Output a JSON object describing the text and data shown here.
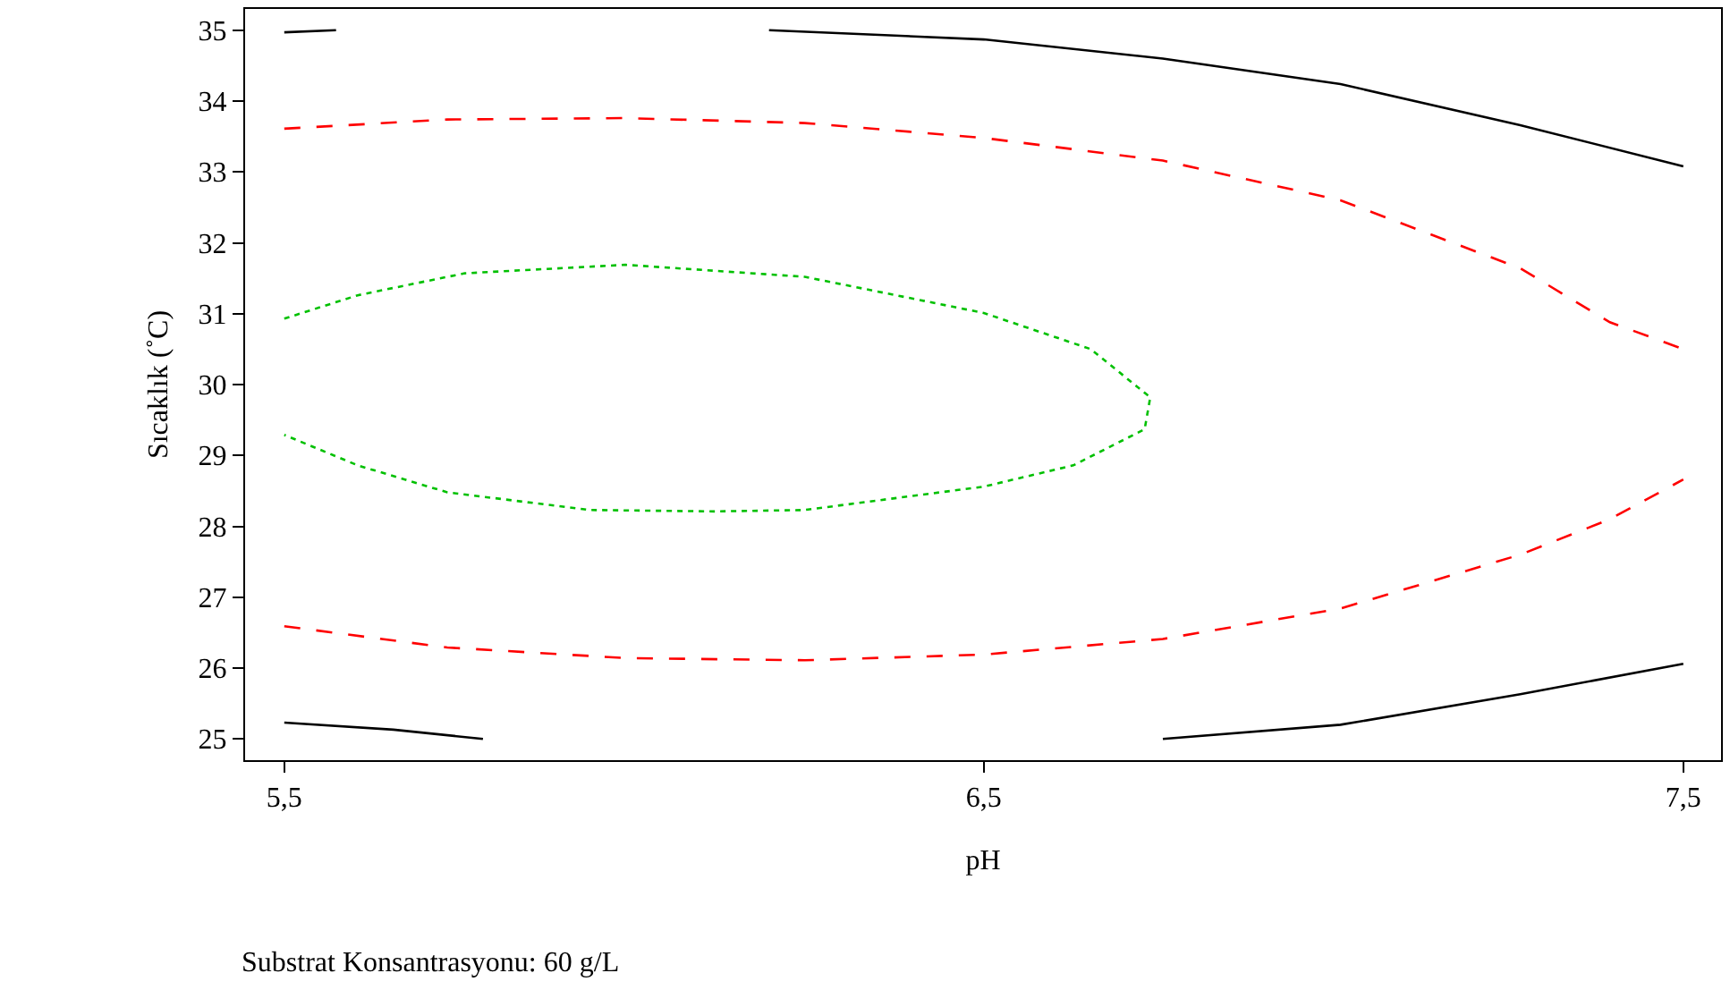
{
  "chart_data": {
    "type": "line",
    "xlabel": "pH",
    "ylabel": "Sıcaklık (˚C)",
    "annotations": [
      "Substrat Konsantrasyonu: 60 g/L"
    ],
    "xlim": [
      5.444,
      7.554
    ],
    "ylim": [
      24.7,
      35.3
    ],
    "xticks": [
      {
        "value": 5.5,
        "label": "5,5"
      },
      {
        "value": 6.5,
        "label": "6,5"
      },
      {
        "value": 7.5,
        "label": "7,5"
      }
    ],
    "yticks": [
      25,
      26,
      27,
      28,
      29,
      30,
      31,
      32,
      33,
      34,
      35
    ],
    "grid": false,
    "marker": "none",
    "series": [
      {
        "color": "#000000",
        "line_style": "solid",
        "x": [
          5.5,
          5.574
        ],
        "values": [
          34.97,
          35.0
        ]
      },
      {
        "color": "#000000",
        "line_style": "solid",
        "x": [
          6.193,
          6.5,
          6.756,
          7.01,
          7.267,
          7.5
        ],
        "values": [
          35.0,
          34.87,
          34.6,
          34.24,
          33.66,
          33.08
        ]
      },
      {
        "color": "#ff0000",
        "line_style": "dashed",
        "x": [
          5.5,
          5.733,
          5.988,
          6.244,
          6.5,
          6.756,
          7.01,
          7.267,
          7.395,
          7.5
        ],
        "values": [
          33.61,
          33.74,
          33.76,
          33.69,
          33.48,
          33.16,
          32.6,
          31.64,
          30.88,
          30.5
        ]
      },
      {
        "color": "#ff0000",
        "line_style": "dashed",
        "x": [
          5.5,
          5.733,
          5.988,
          6.244,
          6.5,
          6.756,
          7.01,
          7.267,
          7.395,
          7.5
        ],
        "values": [
          26.59,
          26.29,
          26.14,
          26.11,
          26.19,
          26.41,
          26.84,
          27.6,
          28.1,
          28.66
        ]
      },
      {
        "color": "#00c000",
        "line_style": "dotted",
        "x": [
          5.5,
          5.605,
          5.758,
          5.988,
          6.244,
          6.5,
          6.653,
          6.738,
          6.73,
          6.628,
          6.5,
          6.244,
          6.116,
          5.937,
          5.733,
          5.605,
          5.5
        ],
        "values": [
          30.93,
          31.26,
          31.57,
          31.69,
          31.52,
          31.01,
          30.5,
          29.82,
          29.37,
          28.86,
          28.56,
          28.23,
          28.21,
          28.23,
          28.48,
          28.86,
          29.29
        ]
      },
      {
        "color": "#000000",
        "line_style": "solid",
        "x": [
          5.5,
          5.656,
          5.784
        ],
        "values": [
          25.23,
          25.13,
          25.0
        ]
      },
      {
        "color": "#000000",
        "line_style": "solid",
        "x": [
          6.756,
          7.01,
          7.267,
          7.5
        ],
        "values": [
          25.0,
          25.2,
          25.63,
          26.06
        ]
      }
    ]
  }
}
